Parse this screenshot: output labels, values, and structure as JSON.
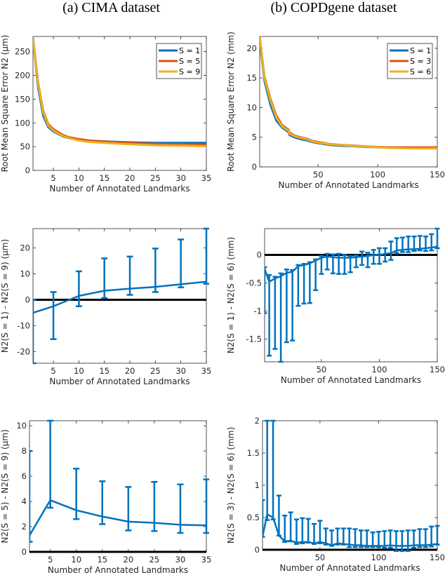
{
  "column_titles": [
    "(a) CIMA dataset",
    "(b) COPDgene dataset"
  ],
  "colors": {
    "blue": "#0072BD",
    "orange": "#D95319",
    "yellow": "#EDB120",
    "zero_line": "#000000",
    "axis": "#262626"
  },
  "chart_data": [
    {
      "id": "cima-rmse",
      "type": "line",
      "title": "",
      "xlabel": "Number of Annotated Landmarks",
      "ylabel": "Root Mean Square Error N2 (μm)",
      "xlim": [
        1,
        35
      ],
      "ylim": [
        0,
        282
      ],
      "xticks": [
        5,
        10,
        15,
        20,
        25,
        30,
        35
      ],
      "yticks": [
        0,
        50,
        100,
        150,
        200,
        250
      ],
      "legend": {
        "position": "top-right",
        "entries": [
          "S = 1",
          "S = 5",
          "S = 9"
        ]
      },
      "x": [
        1,
        2,
        3,
        4,
        5,
        6,
        7,
        8,
        10,
        12,
        15,
        20,
        25,
        30,
        35
      ],
      "series": [
        {
          "name": "S = 1",
          "color": "#0072BD",
          "values": [
            280,
            175,
            115,
            91,
            82,
            76,
            71,
            68,
            64,
            62,
            61,
            59,
            58,
            58,
            58
          ]
        },
        {
          "name": "S = 5",
          "color": "#D95319",
          "values": [
            280,
            185,
            125,
            97,
            87,
            80,
            74,
            70,
            66,
            63,
            61,
            58,
            56,
            55,
            54
          ]
        },
        {
          "name": "S = 9",
          "color": "#EDB120",
          "values": [
            280,
            182,
            122,
            94,
            84,
            77,
            72,
            68,
            63,
            60,
            58,
            55,
            53,
            52,
            51
          ]
        }
      ]
    },
    {
      "id": "copd-rmse",
      "type": "line",
      "title": "",
      "xlabel": "Number of Annotated Landmarks",
      "ylabel": "Root Mean Square Error N2 (mm)",
      "xlim": [
        1,
        150
      ],
      "ylim": [
        0,
        22
      ],
      "xticks": [
        50,
        100,
        150
      ],
      "yticks": [
        0,
        5,
        10,
        15,
        20
      ],
      "legend": {
        "position": "top-right",
        "entries": [
          "S = 1",
          "S = 3",
          "S = 6"
        ]
      },
      "x": [
        1,
        5,
        10,
        15,
        20,
        25,
        26,
        30,
        35,
        40,
        45,
        50,
        60,
        70,
        80,
        90,
        100,
        110,
        120,
        130,
        140,
        150
      ],
      "series": [
        {
          "name": "S = 1",
          "color": "#0072BD",
          "values": [
            21.5,
            14.5,
            10.5,
            7.8,
            6.6,
            5.9,
            5.4,
            5.0,
            4.7,
            4.5,
            4.2,
            4.0,
            3.7,
            3.55,
            3.5,
            3.35,
            3.3,
            3.25,
            3.2,
            3.2,
            3.2,
            3.2
          ]
        },
        {
          "name": "S = 3",
          "color": "#D95319",
          "values": [
            22,
            15.2,
            11.5,
            8.6,
            7.0,
            6.3,
            5.8,
            5.3,
            5.0,
            4.8,
            4.4,
            4.2,
            3.85,
            3.7,
            3.6,
            3.45,
            3.35,
            3.3,
            3.3,
            3.3,
            3.3,
            3.3
          ]
        },
        {
          "name": "S = 6",
          "color": "#EDB120",
          "values": [
            22,
            15.0,
            11.2,
            8.3,
            6.8,
            6.1,
            5.6,
            5.2,
            4.9,
            4.7,
            4.3,
            4.1,
            3.8,
            3.65,
            3.55,
            3.4,
            3.3,
            3.2,
            3.15,
            3.1,
            3.1,
            3.1
          ]
        }
      ]
    },
    {
      "id": "cima-diff-1-9",
      "type": "line",
      "subtype": "errorbar",
      "title": "",
      "xlabel": "Number of Annotated Landmarks",
      "ylabel": "N2(S = 1) - N2(S = 9) (μm)",
      "xlim": [
        1,
        35
      ],
      "ylim": [
        -24.5,
        27.5
      ],
      "xticks": [
        5,
        10,
        15,
        20,
        25,
        30,
        35
      ],
      "yticks": [
        -20,
        -10,
        0,
        10,
        20
      ],
      "zero_line": true,
      "x": [
        1,
        5,
        10,
        15,
        20,
        25,
        30,
        35
      ],
      "values": [
        -5,
        -2.5,
        1.5,
        3.5,
        4.3,
        5.0,
        6.0,
        7.0
      ],
      "lower": [
        -24.5,
        -15.2,
        -2.5,
        0.7,
        1.9,
        3.0,
        4.8,
        6.2
      ],
      "upper": [
        0,
        3.0,
        11.0,
        16.0,
        16.7,
        19.8,
        23.3,
        27.5
      ],
      "color": "#0072BD"
    },
    {
      "id": "copd-diff-1-6",
      "type": "line",
      "subtype": "errorbar",
      "title": "",
      "xlabel": "Number of Annotated Landmarks",
      "ylabel": "N2(S = 1) - N2(S = 6) (mm)",
      "xlim": [
        1,
        150
      ],
      "ylim": [
        -1.91,
        0.47
      ],
      "xticks": [
        50,
        100,
        150
      ],
      "yticks": [
        -1.5,
        -1,
        -0.5,
        0
      ],
      "zero_line": true,
      "x": [
        1,
        5,
        10,
        15,
        20,
        25,
        30,
        35,
        40,
        45,
        50,
        55,
        60,
        65,
        70,
        75,
        80,
        85,
        90,
        95,
        100,
        105,
        110,
        115,
        120,
        125,
        130,
        135,
        140,
        145,
        150
      ],
      "values": [
        -0.25,
        -0.48,
        -0.42,
        -0.38,
        -0.32,
        -0.3,
        -0.2,
        -0.18,
        -0.15,
        -0.1,
        -0.05,
        -0.03,
        -0.04,
        -0.05,
        -0.05,
        -0.05,
        -0.04,
        -0.03,
        -0.02,
        0.0,
        0.0,
        0.02,
        0.03,
        0.08,
        0.09,
        0.1,
        0.1,
        0.11,
        0.12,
        0.13,
        0.15
      ],
      "lower": [
        -1.04,
        -1.8,
        -1.68,
        -1.91,
        -1.56,
        -1.53,
        -0.91,
        -0.87,
        -0.86,
        -0.63,
        -0.34,
        -0.26,
        -0.33,
        -0.34,
        -0.34,
        -0.31,
        -0.22,
        -0.18,
        -0.22,
        -0.16,
        -0.16,
        -0.12,
        -0.09,
        0.03,
        0.05,
        0.05,
        0.07,
        0.08,
        0.07,
        0.08,
        0.12
      ],
      "upper": [
        -0.22,
        -0.36,
        -0.39,
        -0.33,
        -0.26,
        -0.27,
        -0.18,
        -0.16,
        -0.13,
        -0.08,
        -0.02,
        0.02,
        0.01,
        0.02,
        0.0,
        -0.02,
        -0.01,
        0.06,
        0.04,
        0.09,
        0.12,
        0.12,
        0.24,
        0.3,
        0.31,
        0.33,
        0.33,
        0.34,
        0.33,
        0.37,
        0.47
      ],
      "color": "#0072BD"
    },
    {
      "id": "cima-diff-5-9",
      "type": "line",
      "subtype": "errorbar",
      "title": "",
      "xlabel": "Number of Annotated Landmarks",
      "ylabel": "N2(S = 5) - N2(S = 9) (μm)",
      "xlim": [
        1,
        35
      ],
      "ylim": [
        0,
        10.4
      ],
      "xticks": [
        5,
        10,
        15,
        20,
        25,
        30,
        35
      ],
      "yticks": [
        0,
        2,
        4,
        6,
        8,
        10
      ],
      "zero_line": true,
      "x": [
        1,
        5,
        10,
        15,
        20,
        25,
        30,
        35
      ],
      "values": [
        1.3,
        4.1,
        3.3,
        2.8,
        2.4,
        2.3,
        2.15,
        2.1
      ],
      "lower": [
        0.8,
        3.5,
        2.6,
        2.2,
        1.7,
        1.65,
        1.5,
        1.5
      ],
      "upper": [
        8.0,
        10.4,
        6.6,
        5.6,
        5.15,
        5.55,
        5.35,
        5.75
      ],
      "color": "#0072BD"
    },
    {
      "id": "copd-diff-3-6",
      "type": "line",
      "subtype": "errorbar",
      "title": "",
      "xlabel": "Number of Annotated Landmarks",
      "ylabel": "N2(S = 3) - N2(S = 6) (mm)",
      "xlim": [
        1,
        150
      ],
      "ylim": [
        0,
        2.0
      ],
      "xticks": [
        50,
        100,
        150
      ],
      "yticks": [
        0,
        0.5,
        1,
        1.5,
        2
      ],
      "zero_line": true,
      "x": [
        1,
        5,
        10,
        15,
        20,
        25,
        30,
        35,
        40,
        45,
        50,
        55,
        60,
        65,
        70,
        75,
        80,
        85,
        90,
        95,
        100,
        105,
        110,
        115,
        120,
        125,
        130,
        135,
        140,
        145,
        150
      ],
      "values": [
        0.2,
        0.55,
        0.5,
        0.22,
        0.13,
        0.14,
        0.11,
        0.12,
        0.12,
        0.1,
        0.12,
        0.1,
        0.07,
        0.1,
        0.09,
        0.08,
        0.07,
        0.07,
        0.06,
        0.06,
        0.06,
        0.06,
        0.07,
        0.06,
        0.06,
        0.06,
        0.07,
        0.07,
        0.07,
        0.08,
        0.09
      ],
      "lower": [
        0.2,
        0.46,
        0.47,
        0.22,
        0.12,
        0.13,
        0.09,
        0.1,
        0.11,
        0.09,
        0.1,
        0.08,
        0.06,
        0.08,
        0.08,
        0.04,
        0.04,
        0.04,
        0.04,
        0.04,
        0.04,
        0.03,
        0.03,
        -0.02,
        -0.02,
        -0.02,
        0.03,
        0.04,
        0.04,
        0.05,
        0.08
      ],
      "upper": [
        0.77,
        2.0,
        2.0,
        0.84,
        0.53,
        0.58,
        0.47,
        0.49,
        0.48,
        0.4,
        0.45,
        0.33,
        0.3,
        0.33,
        0.33,
        0.33,
        0.32,
        0.3,
        0.3,
        0.27,
        0.28,
        0.29,
        0.3,
        0.29,
        0.29,
        0.3,
        0.3,
        0.32,
        0.32,
        0.36,
        0.37
      ],
      "color": "#0072BD"
    }
  ]
}
